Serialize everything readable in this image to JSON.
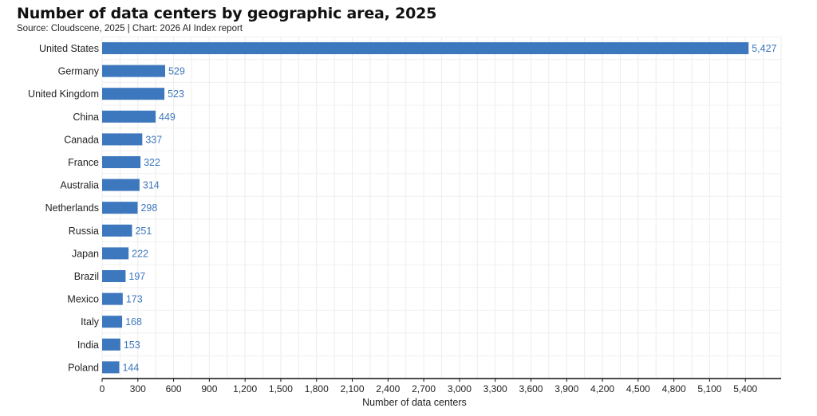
{
  "header": {
    "title": "Number of data centers by geographic area, 2025",
    "subtitle": "Source: Cloudscene, 2025 | Chart: 2026 AI Index report"
  },
  "chart_data": {
    "type": "bar",
    "orientation": "horizontal",
    "title": "Number of data centers by geographic area, 2025",
    "subtitle": "Source: Cloudscene, 2025 | Chart: 2026 AI Index report",
    "xlabel": "Number of data centers",
    "ylabel": "",
    "categories": [
      "United States",
      "Germany",
      "United Kingdom",
      "China",
      "Canada",
      "France",
      "Australia",
      "Netherlands",
      "Russia",
      "Japan",
      "Brazil",
      "Mexico",
      "Italy",
      "India",
      "Poland"
    ],
    "values": [
      5427,
      529,
      523,
      449,
      337,
      322,
      314,
      298,
      251,
      222,
      197,
      173,
      168,
      153,
      144
    ],
    "value_labels": [
      "5,427",
      "529",
      "523",
      "449",
      "337",
      "322",
      "314",
      "298",
      "251",
      "222",
      "197",
      "173",
      "168",
      "153",
      "144"
    ],
    "xlim": [
      0,
      5700
    ],
    "xticks": [
      0,
      300,
      600,
      900,
      1200,
      1500,
      1800,
      2100,
      2400,
      2700,
      3000,
      3300,
      3600,
      3900,
      4200,
      4500,
      4800,
      5100,
      5400
    ],
    "xtick_labels": [
      "0",
      "300",
      "600",
      "900",
      "1,200",
      "1,500",
      "1,800",
      "2,100",
      "2,400",
      "2,700",
      "3,000",
      "3,300",
      "3,600",
      "3,900",
      "4,200",
      "4,500",
      "4,800",
      "5,100",
      "5,400"
    ],
    "grid": true,
    "legend": "none",
    "bar_color": "#3d77bd",
    "value_label_color": "#3d77bd"
  }
}
